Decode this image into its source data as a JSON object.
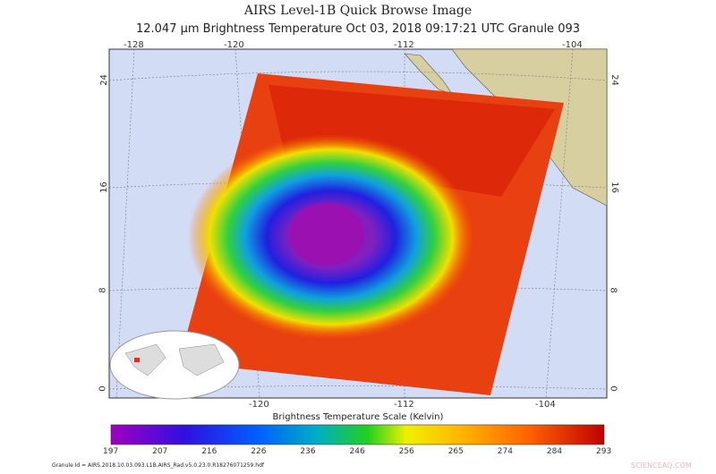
{
  "title": "AIRS Level-1B Quick Browse Image",
  "subtitle": "12.047 µm Brightness Temperature    Oct 03, 2018 09:17:21 UTC   Granule 093",
  "map": {
    "lon_top": [
      "-128",
      "-120",
      "-112",
      "-104"
    ],
    "lon_bottom": [
      "-120",
      "-112",
      "-104"
    ],
    "lat_left": [
      "24",
      "16",
      "8",
      "0"
    ],
    "lat_right": [
      "24",
      "16",
      "8",
      "0"
    ],
    "ocean_color": "#d3dcf5",
    "land_color": "#d8cfa0"
  },
  "colorbar": {
    "title": "Brightness Temperature Scale (Kelvin)",
    "ticks": [
      "197",
      "207",
      "216",
      "226",
      "236",
      "246",
      "256",
      "265",
      "274",
      "284",
      "293"
    ],
    "colors": [
      "#a000c0",
      "#3010e0",
      "#0060ff",
      "#00b0c0",
      "#20d020",
      "#f0f000",
      "#ffb000",
      "#ff6000",
      "#c00000"
    ]
  },
  "granule_id": "Granule Id = AIRS.2018.10.03.093.L1B.AIRS_Rad.v5.0.23.0.R18276071259.hdf",
  "watermark": "SCIENCEAQ.COM"
}
